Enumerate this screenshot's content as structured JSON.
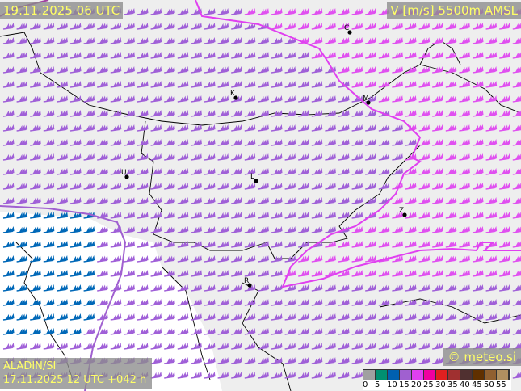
{
  "header": {
    "valid_time": "19.11.2025 06 UTC",
    "field": "V [m/s] 5500m AMSL"
  },
  "model": {
    "name": "ALADIN/SI",
    "run": "17.11.2025 12 UTC +042 h"
  },
  "copyright": "© meteo.si",
  "legend": {
    "colors": [
      "#a0a0a0",
      "#009070",
      "#0060b0",
      "#a060d0",
      "#e040f0",
      "#f000a0",
      "#e02020",
      "#a03030",
      "#503030",
      "#603000",
      "#906030",
      "#b09060"
    ],
    "ticks": [
      "0",
      "5",
      "10",
      "15",
      "20",
      "25",
      "30",
      "35",
      "40",
      "45",
      "50",
      "55"
    ]
  },
  "cities": [
    {
      "label": "C"
    },
    {
      "label": "K"
    },
    {
      "label": "M"
    },
    {
      "label": "U"
    },
    {
      "label": "L"
    },
    {
      "label": "Z"
    },
    {
      "label": "R"
    }
  ],
  "colors": {
    "land": "#eeeeee",
    "sea": "#ffffff",
    "barb_15_20": "#a060d8",
    "barb_20_25": "#e050f0",
    "barb_10_15": "#0068b8",
    "isotach_20": "#e040f0",
    "isotach_15": "#a060d0",
    "borders": "#000000",
    "label_text": "#ffff66"
  }
}
